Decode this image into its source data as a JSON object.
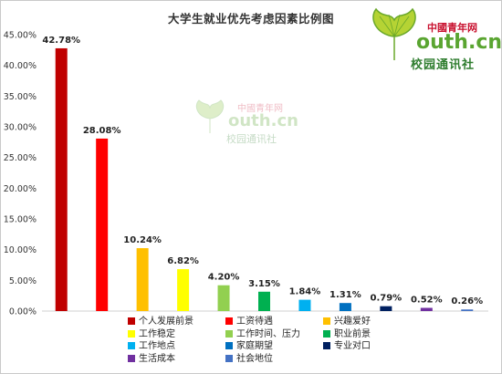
{
  "chart_data": {
    "type": "bar",
    "title": "大学生就业优先考虑因素比例图",
    "categories": [
      "个人发展前景",
      "工资待遇",
      "兴趣爱好",
      "工作稳定",
      "工作时间、压力",
      "职业前景",
      "工作地点",
      "家庭期望",
      "专业对口",
      "生活成本",
      "社会地位"
    ],
    "values": [
      42.78,
      28.08,
      10.24,
      6.82,
      4.2,
      3.15,
      1.84,
      1.31,
      0.79,
      0.52,
      0.26
    ],
    "data_labels": [
      "42.78%",
      "28.08%",
      "10.24%",
      "6.82%",
      "4.20%",
      "3.15%",
      "1.84%",
      "1.31%",
      "0.79%",
      "0.52%",
      "0.26%"
    ],
    "colors": [
      "#c00000",
      "#ff0000",
      "#ffc000",
      "#ffff00",
      "#92d050",
      "#00b050",
      "#00b0f0",
      "#0070c0",
      "#002060",
      "#7030a0",
      "#4472c4"
    ],
    "yticks": [
      "0.00%",
      "5.00%",
      "10.00%",
      "15.00%",
      "20.00%",
      "25.00%",
      "30.00%",
      "35.00%",
      "40.00%",
      "45.00%"
    ],
    "ylim": [
      0,
      45
    ],
    "grid": false,
    "legend_position": "bottom"
  },
  "logo": {
    "cn": "中國青年网",
    "domain": "outh.cn",
    "sub": "校园通讯社"
  }
}
